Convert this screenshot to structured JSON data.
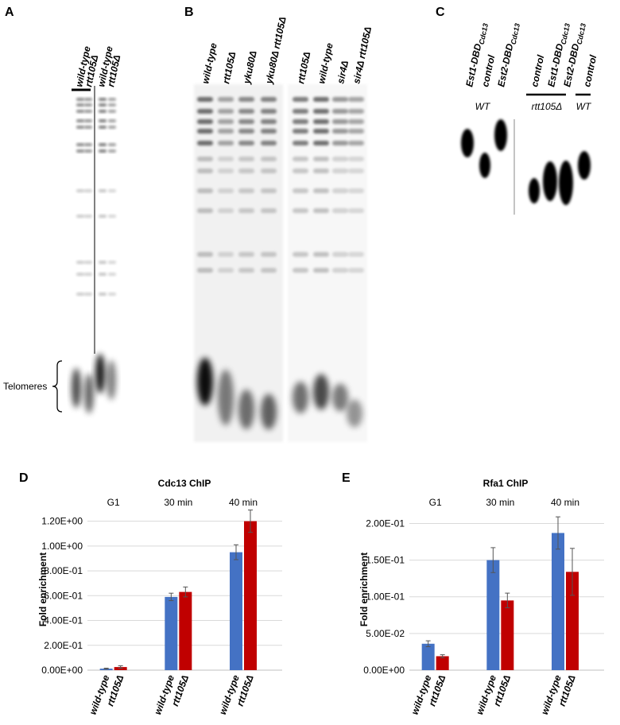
{
  "panels": {
    "A": {
      "letter": "A",
      "lanes": [
        "wild-type",
        "rtt105Δ",
        "wild-type",
        "rtt105Δ"
      ],
      "bracket": "Telomeres"
    },
    "B": {
      "letter": "B",
      "lanes": [
        "wild-type",
        "rtt105Δ",
        "yku80Δ",
        "yku80Δ rtt105Δ",
        "rtt105Δ",
        "wild-type",
        "sir4Δ",
        "sir4Δ rtt105Δ"
      ]
    },
    "C": {
      "letter": "C",
      "lanes": [
        {
          "text": "Est1-DBD",
          "sub": "Cdc13"
        },
        {
          "text": "control"
        },
        {
          "text": "Est2-DBD",
          "sub": "Cdc13"
        },
        {
          "text": "control"
        },
        {
          "text": "Est1-DBD",
          "sub": "Cdc13"
        },
        {
          "text": "Est2-DBD",
          "sub": "Cdc13"
        },
        {
          "text": "control"
        }
      ],
      "groups": [
        "WT",
        "rtt105Δ",
        "WT"
      ]
    },
    "D": {
      "letter": "D"
    },
    "E": {
      "letter": "E"
    }
  },
  "chart_data": [
    {
      "type": "bar",
      "title": "Cdc13 ChIP",
      "y_label": "Fold enrichment",
      "categories": [
        "G1",
        "30 min",
        "40 min"
      ],
      "series": [
        {
          "name": "wild-type",
          "color": "#4472c4",
          "values": [
            0.012,
            0.59,
            0.95
          ],
          "errors": [
            0.004,
            0.03,
            0.06
          ]
        },
        {
          "name": "rtt105Δ",
          "color": "#c00000",
          "values": [
            0.025,
            0.63,
            1.2
          ],
          "errors": [
            0.01,
            0.04,
            0.09
          ]
        }
      ],
      "ylim": [
        0,
        1.3
      ],
      "yticks": [
        {
          "value": 0,
          "label": "0.00E+00"
        },
        {
          "value": 0.2,
          "label": "2.00E-01"
        },
        {
          "value": 0.4,
          "label": "4.00E-01"
        },
        {
          "value": 0.6,
          "label": "6.00E-01"
        },
        {
          "value": 0.8,
          "label": "8.00E-01"
        },
        {
          "value": 1.0,
          "label": "1.00E+00"
        },
        {
          "value": 1.2,
          "label": "1.20E+00"
        }
      ],
      "grid": true
    },
    {
      "type": "bar",
      "title": "Rfa1 ChIP",
      "y_label": "Fold enrichment",
      "categories": [
        "G1",
        "30 min",
        "40 min"
      ],
      "series": [
        {
          "name": "wild-type",
          "color": "#4472c4",
          "values": [
            0.036,
            0.15,
            0.187
          ],
          "errors": [
            0.004,
            0.017,
            0.022
          ]
        },
        {
          "name": "rtt105Δ",
          "color": "#c00000",
          "values": [
            0.019,
            0.095,
            0.134
          ],
          "errors": [
            0.002,
            0.01,
            0.032
          ]
        }
      ],
      "ylim": [
        0,
        0.22
      ],
      "yticks": [
        {
          "value": 0,
          "label": "0.00E+00"
        },
        {
          "value": 0.05,
          "label": "5.00E-02"
        },
        {
          "value": 0.1,
          "label": "1.00E-01"
        },
        {
          "value": 0.15,
          "label": "1.50E-01"
        },
        {
          "value": 0.2,
          "label": "2.00E-01"
        }
      ],
      "grid": true
    }
  ]
}
